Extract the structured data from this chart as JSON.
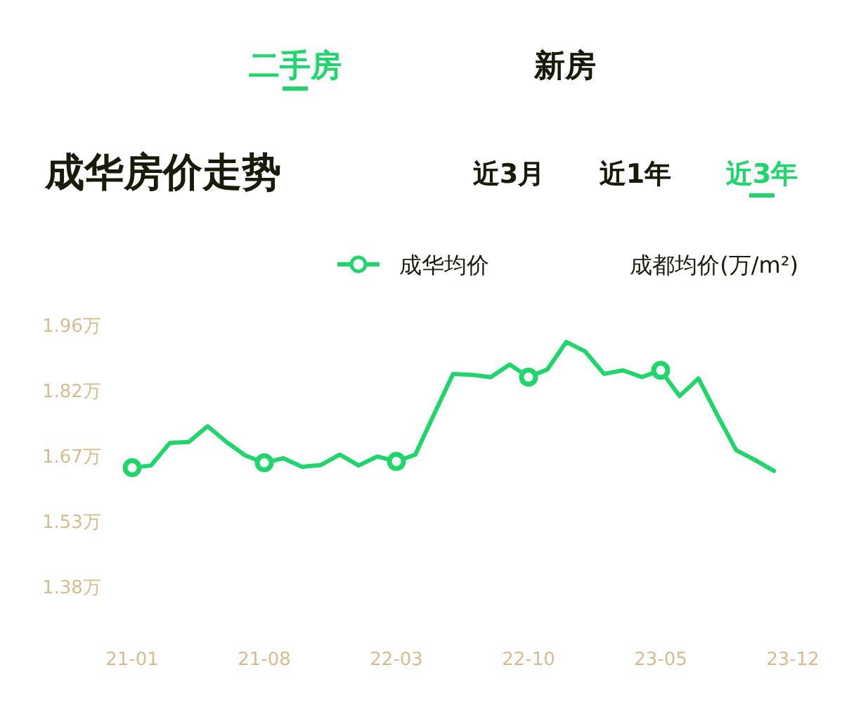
{
  "chart_data": {
    "type": "line",
    "title": "成华房价走势",
    "categories": [
      "21-01",
      null,
      null,
      null,
      null,
      null,
      null,
      "21-08",
      null,
      null,
      null,
      null,
      null,
      null,
      "22-03",
      null,
      null,
      null,
      null,
      null,
      null,
      "22-10",
      null,
      null,
      null,
      null,
      null,
      null,
      "23-05",
      null,
      null,
      null,
      null,
      null,
      null,
      "23-12"
    ],
    "series": [
      {
        "name": "成华均价",
        "color": "#1ed66a",
        "values": [
          1.643,
          1.648,
          1.698,
          1.7,
          1.735,
          1.7,
          1.67,
          1.654,
          1.664,
          1.645,
          1.649,
          1.672,
          1.648,
          1.668,
          1.657,
          1.672,
          1.762,
          1.851,
          1.849,
          1.844,
          1.872,
          1.844,
          1.861,
          1.922,
          1.901,
          1.851,
          1.859,
          1.844,
          1.859,
          1.802,
          1.841,
          1.76,
          1.682,
          1.66,
          1.636,
          null
        ]
      }
    ],
    "ylim": [
      1.38,
      1.96
    ],
    "yticks": [
      {
        "value": 1.38,
        "label": "1.38万"
      },
      {
        "value": 1.525,
        "label": "1.53万"
      },
      {
        "value": 1.67,
        "label": "1.67万"
      },
      {
        "value": 1.815,
        "label": "1.82万"
      },
      {
        "value": 1.96,
        "label": "1.96万"
      }
    ],
    "line_style": "solid",
    "legend": "top",
    "grid": false,
    "annotations": [
      "二手房",
      "新房",
      "近3月",
      "近1年",
      "近3年",
      "成都均价(万/m²)"
    ]
  }
}
